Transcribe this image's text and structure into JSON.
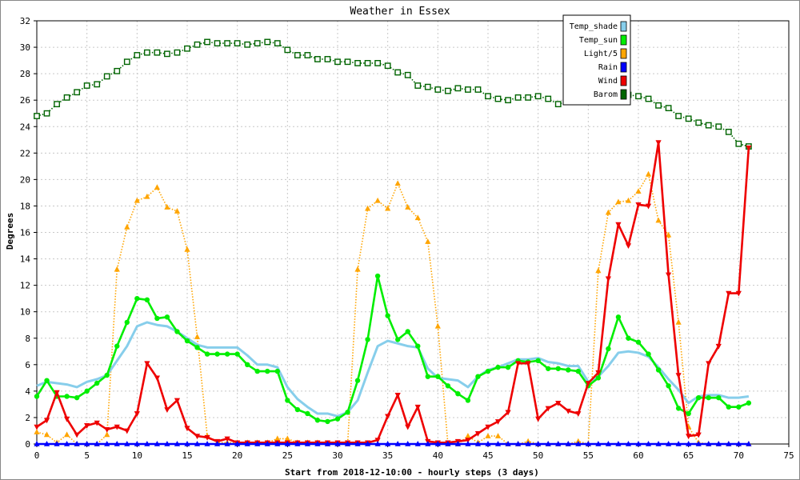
{
  "chart_data": {
    "type": "line",
    "title": "Weather in Essex",
    "xlabel": "Start from 2018-12-10:00 - hourly steps (3 days)",
    "ylabel": "Degrees",
    "xlim": [
      0,
      75
    ],
    "ylim": [
      0,
      32
    ],
    "x_ticks": [
      0,
      5,
      10,
      15,
      20,
      25,
      30,
      35,
      40,
      45,
      50,
      55,
      60,
      65,
      70,
      75
    ],
    "y_ticks": [
      0,
      2,
      4,
      6,
      8,
      10,
      12,
      14,
      16,
      18,
      20,
      22,
      24,
      26,
      28,
      30,
      32
    ],
    "grid": true,
    "legend_position": "top-right",
    "x": [
      0,
      1,
      2,
      3,
      4,
      5,
      6,
      7,
      8,
      9,
      10,
      11,
      12,
      13,
      14,
      15,
      16,
      17,
      18,
      19,
      20,
      21,
      22,
      23,
      24,
      25,
      26,
      27,
      28,
      29,
      30,
      31,
      32,
      33,
      34,
      35,
      36,
      37,
      38,
      39,
      40,
      41,
      42,
      43,
      44,
      45,
      46,
      47,
      48,
      49,
      50,
      51,
      52,
      53,
      54,
      55,
      56,
      57,
      58,
      59,
      60,
      61,
      62,
      63,
      64,
      65,
      66,
      67,
      68,
      69,
      70,
      71
    ],
    "series": [
      {
        "name": "Temp_shade",
        "color": "#87ceeb",
        "marker": "none",
        "style": "solid",
        "values": [
          4.4,
          4.7,
          4.6,
          4.5,
          4.3,
          4.7,
          4.9,
          5.2,
          6.3,
          7.4,
          8.9,
          9.2,
          9.0,
          8.9,
          8.5,
          8.0,
          7.5,
          7.3,
          7.3,
          7.3,
          7.3,
          6.7,
          6.0,
          6.0,
          5.8,
          4.3,
          3.4,
          2.8,
          2.3,
          2.3,
          2.1,
          2.4,
          3.3,
          5.4,
          7.4,
          7.8,
          7.6,
          7.4,
          7.3,
          5.7,
          5.0,
          4.9,
          4.8,
          4.3,
          5.1,
          5.6,
          5.8,
          6.1,
          6.4,
          6.4,
          6.5,
          6.2,
          6.1,
          5.9,
          5.9,
          4.7,
          5.1,
          5.9,
          6.9,
          7.0,
          6.9,
          6.6,
          5.8,
          4.9,
          4.1,
          3.1,
          3.6,
          3.7,
          3.7,
          3.5,
          3.5,
          3.6
        ]
      },
      {
        "name": "Temp_sun",
        "color": "#00ee00",
        "marker": "circle",
        "style": "solid",
        "values": [
          3.6,
          4.8,
          3.6,
          3.6,
          3.5,
          4.0,
          4.6,
          5.2,
          7.4,
          9.2,
          11.0,
          10.9,
          9.5,
          9.6,
          8.5,
          7.8,
          7.3,
          6.8,
          6.8,
          6.8,
          6.8,
          6.0,
          5.5,
          5.5,
          5.5,
          3.3,
          2.6,
          2.3,
          1.8,
          1.7,
          1.9,
          2.4,
          4.8,
          7.9,
          12.7,
          9.7,
          7.9,
          8.5,
          7.4,
          5.1,
          5.1,
          4.4,
          3.8,
          3.3,
          5.1,
          5.5,
          5.8,
          5.8,
          6.3,
          6.2,
          6.3,
          5.7,
          5.7,
          5.6,
          5.5,
          4.4,
          5.0,
          7.2,
          9.6,
          8.0,
          7.7,
          6.8,
          5.6,
          4.4,
          2.7,
          2.3,
          3.5,
          3.5,
          3.5,
          2.8,
          2.8,
          3.1
        ]
      },
      {
        "name": "Light/5",
        "color": "#ffa500",
        "marker": "triangle-up",
        "style": "dotted",
        "values": [
          0.9,
          0.7,
          0.1,
          0.7,
          0,
          0,
          0,
          0.7,
          13.2,
          16.4,
          18.4,
          18.7,
          19.4,
          17.9,
          17.6,
          14.7,
          8.1,
          0.6,
          0.1,
          0.1,
          0.1,
          0.1,
          0.1,
          0.1,
          0.4,
          0.4,
          0.1,
          0.1,
          0.1,
          0,
          0,
          0,
          13.2,
          17.8,
          18.4,
          17.8,
          19.7,
          17.9,
          17.1,
          15.3,
          8.9,
          0,
          0,
          0.6,
          0.1,
          0.6,
          0.6,
          0,
          0,
          0.2,
          0,
          0,
          0,
          0,
          0.2,
          0,
          13.1,
          17.5,
          18.3,
          18.4,
          19.1,
          20.4,
          16.9,
          15.8,
          9.2,
          1.3,
          0.1,
          0,
          0,
          0,
          0,
          0
        ]
      },
      {
        "name": "Rain",
        "color": "#0000ff",
        "marker": "triangle-up",
        "style": "solid",
        "values": [
          0,
          0,
          0,
          0,
          0,
          0,
          0,
          0,
          0,
          0,
          0,
          0,
          0,
          0,
          0,
          0,
          0,
          0,
          0,
          0,
          0,
          0,
          0,
          0,
          0,
          0,
          0,
          0,
          0,
          0,
          0,
          0,
          0,
          0,
          0,
          0,
          0,
          0,
          0,
          0,
          0,
          0,
          0,
          0,
          0,
          0,
          0,
          0,
          0,
          0,
          0,
          0,
          0,
          0,
          0,
          0,
          0,
          0,
          0,
          0,
          0,
          0,
          0,
          0,
          0,
          0,
          0,
          0,
          0,
          0,
          0,
          0
        ]
      },
      {
        "name": "Wind",
        "color": "#ee0000",
        "marker": "triangle-down",
        "style": "solid",
        "values": [
          1.3,
          1.8,
          3.9,
          1.9,
          0.7,
          1.4,
          1.6,
          1.1,
          1.3,
          1.0,
          2.3,
          6.1,
          5.0,
          2.6,
          3.3,
          1.2,
          0.6,
          0.5,
          0.2,
          0.4,
          0.1,
          0.1,
          0.1,
          0.1,
          0.1,
          0.1,
          0.1,
          0.1,
          0.1,
          0.1,
          0.1,
          0.1,
          0.1,
          0.1,
          0.3,
          2.1,
          3.7,
          1.3,
          2.8,
          0.2,
          0.1,
          0.1,
          0.2,
          0.3,
          0.8,
          1.3,
          1.7,
          2.4,
          6.1,
          6.1,
          1.9,
          2.7,
          3.1,
          2.5,
          2.3,
          4.6,
          5.4,
          12.5,
          16.6,
          15.0,
          18.1,
          18.0,
          22.8,
          12.8,
          5.2,
          0.6,
          0.7,
          6.1,
          7.4,
          11.4,
          11.4,
          22.4
        ]
      },
      {
        "name": "Barom",
        "color": "#006400",
        "marker": "square",
        "style": "dotted",
        "values": [
          24.8,
          25.0,
          25.7,
          26.2,
          26.6,
          27.1,
          27.2,
          27.8,
          28.2,
          28.9,
          29.4,
          29.6,
          29.6,
          29.5,
          29.6,
          29.9,
          30.2,
          30.4,
          30.3,
          30.3,
          30.3,
          30.2,
          30.3,
          30.4,
          30.3,
          29.8,
          29.4,
          29.4,
          29.1,
          29.1,
          28.9,
          28.9,
          28.8,
          28.8,
          28.8,
          28.6,
          28.1,
          27.9,
          27.1,
          27.0,
          26.8,
          26.7,
          26.9,
          26.8,
          26.8,
          26.3,
          26.1,
          26.0,
          26.2,
          26.2,
          26.3,
          26.1,
          25.7,
          25.9,
          26.1,
          26.6,
          26.8,
          26.7,
          26.5,
          26.4,
          26.3,
          26.1,
          25.6,
          25.4,
          24.8,
          24.6,
          24.3,
          24.1,
          24.0,
          23.6,
          22.7,
          22.5
        ]
      }
    ]
  }
}
